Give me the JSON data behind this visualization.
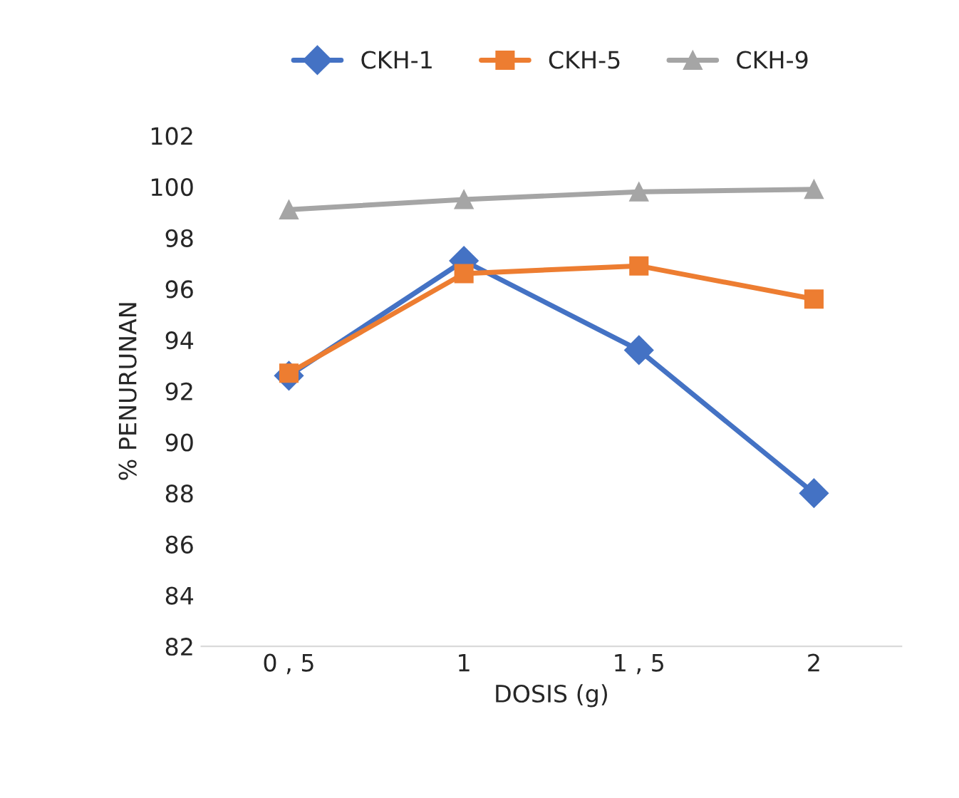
{
  "chart_data": {
    "type": "line",
    "xlabel": "DOSIS (g)",
    "ylabel": "% PENURUNAN",
    "categories": [
      "0 , 5",
      "1",
      "1 , 5",
      "2"
    ],
    "series": [
      {
        "name": "CKH-1",
        "color": "#4472c4",
        "marker": "diamond",
        "values": [
          92.6,
          97.1,
          93.6,
          88.0
        ]
      },
      {
        "name": "CKH-5",
        "color": "#ed7d31",
        "marker": "square",
        "values": [
          92.7,
          96.6,
          96.9,
          95.6
        ]
      },
      {
        "name": "CKH-9",
        "color": "#a5a5a5",
        "marker": "triangle",
        "values": [
          99.1,
          99.5,
          99.8,
          99.9
        ]
      }
    ],
    "ylim": [
      82,
      102
    ],
    "yticks": [
      82,
      84,
      86,
      88,
      90,
      92,
      94,
      96,
      98,
      100,
      102
    ],
    "grid": false,
    "legend": "top",
    "line_style": "solid"
  }
}
